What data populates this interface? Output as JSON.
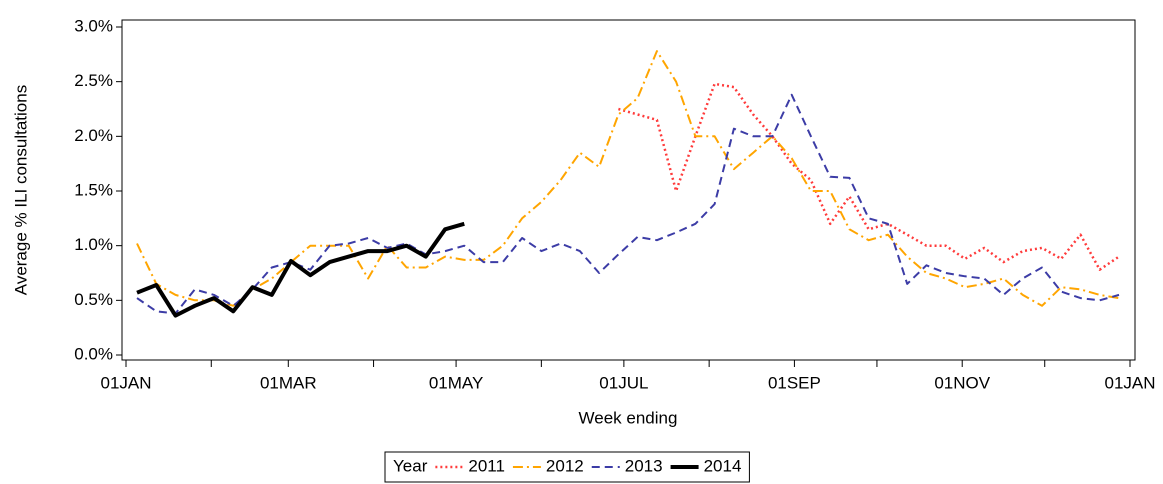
{
  "chart_data": {
    "type": "line",
    "y_label": "Average % ILI consultations",
    "x_label": "Week ending",
    "legend_title": "Year",
    "legend": "bottom",
    "x": [
      4,
      11,
      18,
      25,
      32,
      39,
      46,
      53,
      60,
      67,
      74,
      81,
      88,
      95,
      102,
      109,
      116,
      123,
      130,
      137,
      144,
      151,
      158,
      165,
      172,
      179,
      186,
      193,
      200,
      207,
      214,
      221,
      228,
      235,
      242,
      249,
      256,
      263,
      270,
      277,
      284,
      291,
      298,
      305,
      312,
      319,
      326,
      333,
      340,
      347,
      354,
      361
    ],
    "xlim": [
      0,
      365
    ],
    "xticks": [
      {
        "value": 0,
        "label": "01JAN"
      },
      {
        "value": 59,
        "label": "01MAR"
      },
      {
        "value": 120,
        "label": "01MAY"
      },
      {
        "value": 181,
        "label": "01JUL"
      },
      {
        "value": 243,
        "label": "01SEP"
      },
      {
        "value": 304,
        "label": "01NOV"
      },
      {
        "value": 365,
        "label": "01JAN"
      }
    ],
    "xminorticks": [
      31,
      90,
      151,
      212,
      273,
      334
    ],
    "ylim": [
      0,
      3
    ],
    "yticks": [
      {
        "value": 0,
        "label": "0.0%"
      },
      {
        "value": 0.5,
        "label": "0.5%"
      },
      {
        "value": 1,
        "label": "1.0%"
      },
      {
        "value": 1.5,
        "label": "1.5%"
      },
      {
        "value": 2,
        "label": "2.0%"
      },
      {
        "value": 2.5,
        "label": "2.5%"
      },
      {
        "value": 3,
        "label": "3.0%"
      }
    ],
    "series": [
      {
        "name": "2011",
        "color": "#ff3b3b",
        "dash": "2,3",
        "width": 2.5,
        "values": [
          null,
          null,
          null,
          null,
          null,
          null,
          null,
          null,
          null,
          null,
          null,
          null,
          null,
          null,
          null,
          null,
          null,
          null,
          null,
          null,
          null,
          null,
          null,
          null,
          null,
          2.25,
          2.2,
          2.15,
          1.5,
          2.0,
          2.48,
          2.45,
          2.2,
          2.0,
          1.75,
          1.6,
          1.2,
          1.45,
          1.15,
          1.2,
          1.1,
          1.0,
          1.0,
          0.88,
          0.98,
          0.85,
          0.95,
          0.98,
          0.88,
          1.1,
          0.78,
          0.9
        ]
      },
      {
        "name": "2012",
        "color": "#ffa500",
        "dash": "10,4,2,4",
        "width": 2,
        "values": [
          1.02,
          0.65,
          0.55,
          0.5,
          0.5,
          0.45,
          0.6,
          0.7,
          0.85,
          1.0,
          1.0,
          1.0,
          0.7,
          1.0,
          0.8,
          0.8,
          0.9,
          0.87,
          0.87,
          1.0,
          1.25,
          1.4,
          1.6,
          1.85,
          1.72,
          2.2,
          2.35,
          2.78,
          2.5,
          2.0,
          2.0,
          1.7,
          1.85,
          2.0,
          1.8,
          1.5,
          1.5,
          1.15,
          1.05,
          1.1,
          0.9,
          0.75,
          0.7,
          0.62,
          0.65,
          0.7,
          0.55,
          0.45,
          0.62,
          0.6,
          0.55,
          0.52
        ]
      },
      {
        "name": "2013",
        "color": "#3c3ca6",
        "dash": "8,5",
        "width": 2,
        "values": [
          0.52,
          0.4,
          0.38,
          0.6,
          0.55,
          0.45,
          0.6,
          0.8,
          0.85,
          0.78,
          1.0,
          1.02,
          1.07,
          0.98,
          1.02,
          0.92,
          0.95,
          1.0,
          0.85,
          0.85,
          1.07,
          0.95,
          1.02,
          0.95,
          0.75,
          0.92,
          1.08,
          1.05,
          1.12,
          1.2,
          1.38,
          2.07,
          2.0,
          2.0,
          2.38,
          2.0,
          1.63,
          1.62,
          1.25,
          1.2,
          0.65,
          0.82,
          0.75,
          0.72,
          0.7,
          0.55,
          0.7,
          0.8,
          0.58,
          0.52,
          0.5,
          0.55
        ]
      },
      {
        "name": "2014",
        "color": "#000000",
        "dash": "none",
        "width": 4,
        "values": [
          0.57,
          0.64,
          0.36,
          0.45,
          0.52,
          0.4,
          0.62,
          0.55,
          0.86,
          0.73,
          0.85,
          0.9,
          0.95,
          0.95,
          1.0,
          0.9,
          1.15,
          1.2,
          null,
          null,
          null,
          null,
          null,
          null,
          null,
          null,
          null,
          null,
          null,
          null,
          null,
          null,
          null,
          null,
          null,
          null,
          null,
          null,
          null,
          null,
          null,
          null,
          null,
          null,
          null,
          null,
          null,
          null,
          null,
          null,
          null,
          null
        ]
      }
    ]
  }
}
